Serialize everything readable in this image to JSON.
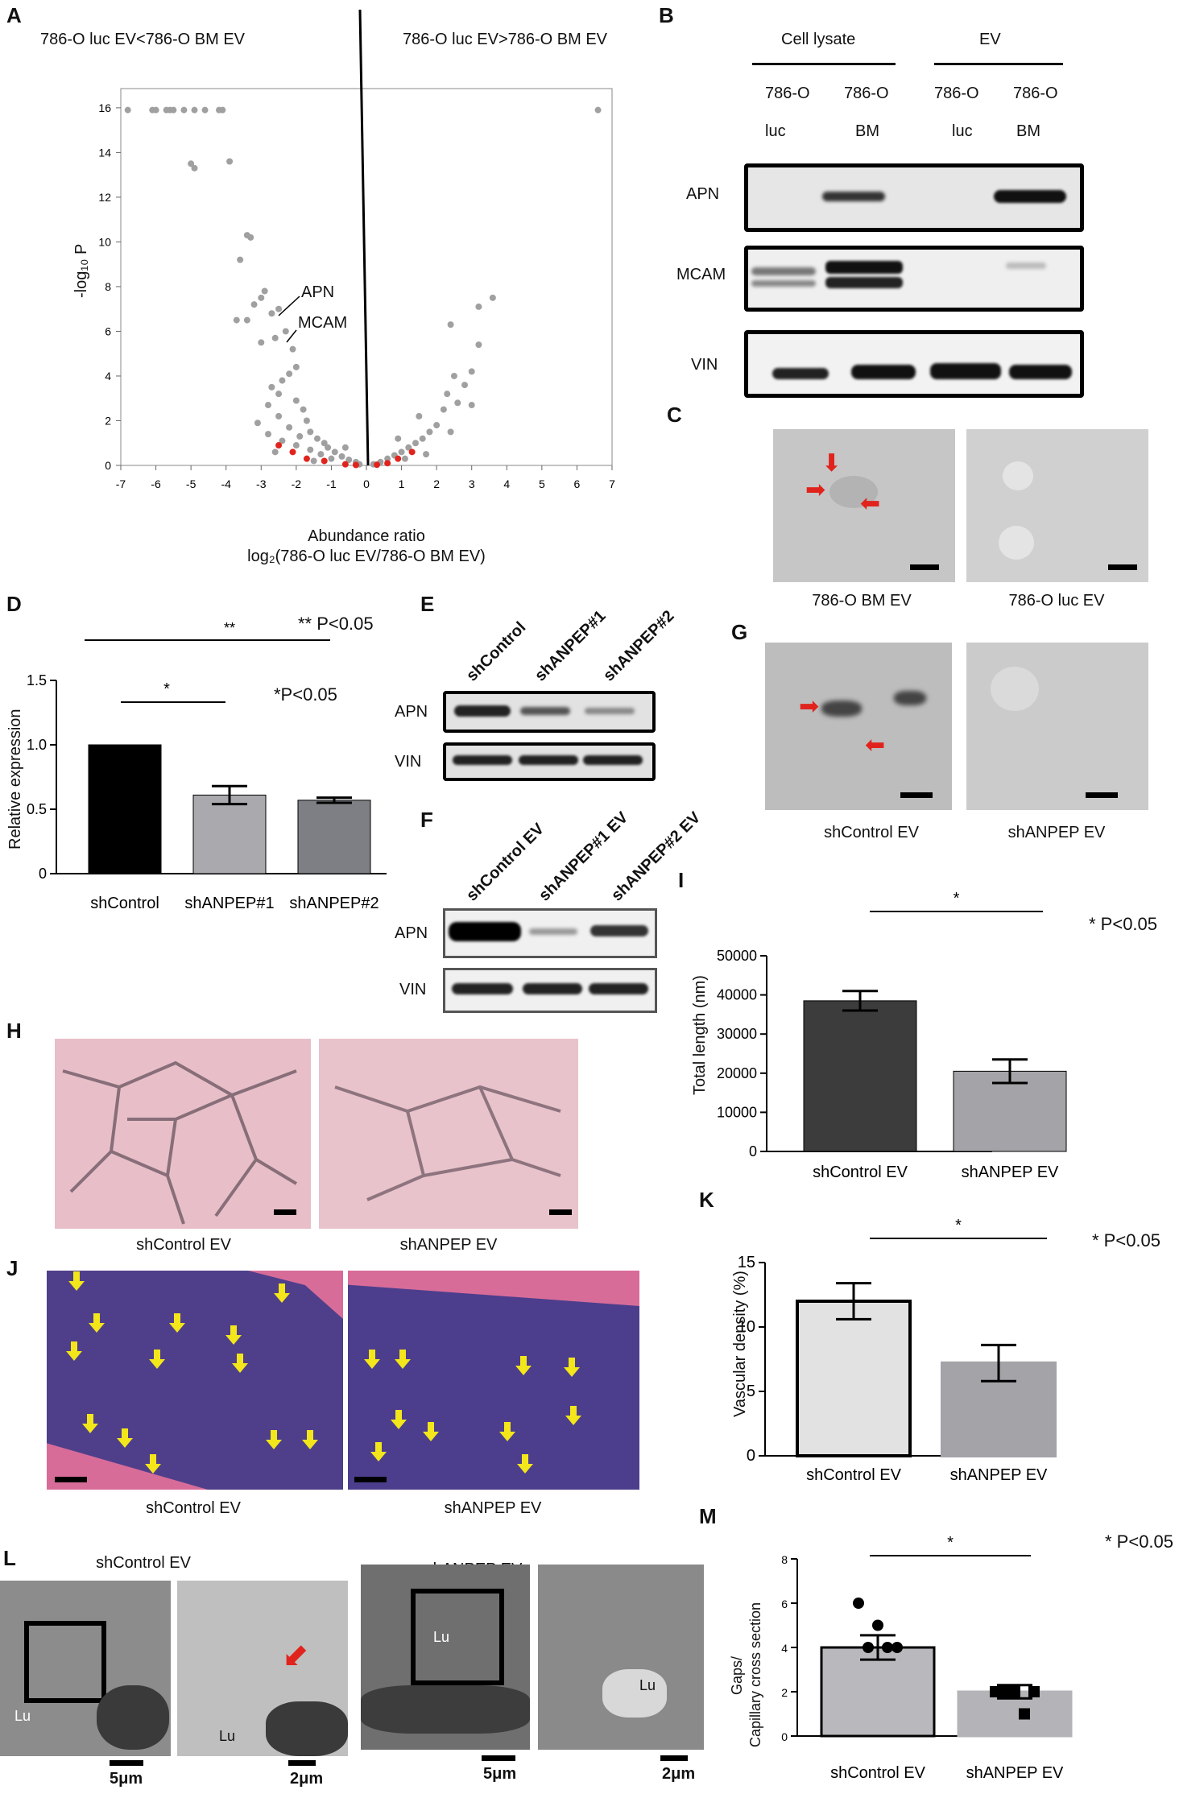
{
  "panel_labels": {
    "A": "A",
    "B": "B",
    "C": "C",
    "D": "D",
    "E": "E",
    "F": "F",
    "G": "G",
    "H": "H",
    "I": "I",
    "J": "J",
    "K": "K",
    "L": "L",
    "M": "M"
  },
  "panelA": {
    "left_header": "786-O luc EV<786-O BM EV",
    "right_header": "786-O luc EV>786-O BM EV",
    "ylabel": "-log₁₀ P",
    "xlabel": "Abundance ratio",
    "xlabel2": "log₂(786-O luc EV/786-O BM EV)",
    "apn_label": "APN",
    "mcam_label": "MCAM",
    "xticks": [
      "-7",
      "-6",
      "-5",
      "-4",
      "-3",
      "-2",
      "-1",
      "0",
      "1",
      "2",
      "3",
      "4",
      "5",
      "6",
      "7"
    ],
    "yticks": [
      "0",
      "2",
      "4",
      "6",
      "8",
      "10",
      "12",
      "14",
      "16"
    ]
  },
  "panelB": {
    "group1": "Cell lysate",
    "group2": "EV",
    "lanes_top": [
      "786-O",
      "786-O",
      "786-O",
      "786-O"
    ],
    "lanes_bottom": [
      "luc",
      "BM",
      "luc",
      "BM"
    ],
    "rows": [
      "APN",
      "MCAM",
      "VIN"
    ]
  },
  "panelC": {
    "cap1": "786-O BM EV",
    "cap2": "786-O luc EV"
  },
  "panelD": {
    "sig1": "**",
    "sig1_note": "** P<0.05",
    "sig2": "*",
    "sig2_note": "*P<0.05",
    "ylabel": "Relative expression",
    "yticks": [
      "0",
      "0.5",
      "1.0",
      "1.5"
    ]
  },
  "panelE": {
    "lanes": [
      "shControl",
      "shANPEP#1",
      "shANPEP#2"
    ],
    "rows": [
      "APN",
      "VIN"
    ]
  },
  "panelF": {
    "lanes": [
      "shControl EV",
      "shANPEP#1 EV",
      "shANPEP#2 EV"
    ],
    "rows": [
      "APN",
      "VIN"
    ]
  },
  "panelG": {
    "cap1": "shControl EV",
    "cap2": "shANPEP EV"
  },
  "panelH": {
    "cap1": "shControl EV",
    "cap2": "shANPEP EV"
  },
  "panelI": {
    "sig": "*",
    "note": "* P<0.05",
    "ylabel": "Total length (nm)",
    "yticks": [
      "0",
      "10000",
      "20000",
      "30000",
      "40000",
      "50000"
    ]
  },
  "panelJ": {
    "cap1": "shControl EV",
    "cap2": "shANPEP EV"
  },
  "panelK": {
    "sig": "*",
    "note": "* P<0.05",
    "ylabel": "Vascular density (%)",
    "yticks": [
      "0",
      "5",
      "10",
      "15"
    ]
  },
  "panelL": {
    "title1": "shControl EV",
    "title2": "shANPEP EV",
    "lu": "Lu",
    "scale1": "5μm",
    "scale2": "2μm",
    "scale3": "5μm",
    "scale4": "2μm"
  },
  "panelM": {
    "sig": "*",
    "note": "* P<0.05",
    "ylabel1": "Gaps/",
    "ylabel2": "Capillary cross section",
    "yticks": [
      "0",
      "2",
      "4",
      "6",
      "8"
    ]
  },
  "chart_data": [
    {
      "type": "scatter",
      "title": "",
      "xlabel": "Abundance ratio log2(786-O luc EV/786-O BM EV)",
      "ylabel": "-log10 P",
      "xlim": [
        -7,
        7
      ],
      "ylim": [
        0,
        16.5
      ],
      "points_gray": [
        [
          -6.8,
          15.9
        ],
        [
          -6.1,
          15.9
        ],
        [
          -6,
          15.9
        ],
        [
          -5.7,
          15.9
        ],
        [
          -5.6,
          15.9
        ],
        [
          -5.5,
          15.9
        ],
        [
          -5.2,
          15.9
        ],
        [
          -4.9,
          15.9
        ],
        [
          -4.6,
          15.9
        ],
        [
          -4.2,
          15.9
        ],
        [
          -4.1,
          15.9
        ],
        [
          6.6,
          15.9
        ],
        [
          -5,
          13.5
        ],
        [
          -4.9,
          13.3
        ],
        [
          -3.9,
          13.6
        ],
        [
          -3.4,
          10.3
        ],
        [
          -3.3,
          10.2
        ],
        [
          -3.6,
          9.2
        ],
        [
          -2.9,
          7.8
        ],
        [
          -3,
          7.5
        ],
        [
          -3.2,
          7.2
        ],
        [
          -2.5,
          7
        ],
        [
          -2.7,
          6.8
        ],
        [
          -3.7,
          6.5
        ],
        [
          -3.4,
          6.5
        ],
        [
          -2.3,
          6
        ],
        [
          -2.6,
          5.7
        ],
        [
          -3,
          5.5
        ],
        [
          -2.1,
          5.2
        ],
        [
          -2,
          4.4
        ],
        [
          -2.2,
          4.1
        ],
        [
          -2.4,
          3.8
        ],
        [
          -2.7,
          3.5
        ],
        [
          -2.5,
          3.2
        ],
        [
          -2,
          2.9
        ],
        [
          -2.8,
          2.7
        ],
        [
          -1.8,
          2.5
        ],
        [
          -2.5,
          2.2
        ],
        [
          -1.7,
          2
        ],
        [
          -3.1,
          1.9
        ],
        [
          -2.2,
          1.7
        ],
        [
          -1.6,
          1.5
        ],
        [
          -2.8,
          1.4
        ],
        [
          -1.9,
          1.3
        ],
        [
          -1.4,
          1.2
        ],
        [
          -2.4,
          1.1
        ],
        [
          -1.2,
          1
        ],
        [
          -2,
          0.9
        ],
        [
          -1.1,
          0.8
        ],
        [
          -1.6,
          0.7
        ],
        [
          -0.9,
          0.6
        ],
        [
          -1.3,
          0.5
        ],
        [
          -0.7,
          0.4
        ],
        [
          -1,
          0.3
        ],
        [
          -0.5,
          0.25
        ],
        [
          -0.3,
          0.15
        ],
        [
          -0.2,
          0.05
        ],
        [
          0.2,
          0.05
        ],
        [
          0.4,
          0.15
        ],
        [
          0.6,
          0.3
        ],
        [
          0.8,
          0.45
        ],
        [
          1,
          0.6
        ],
        [
          1.2,
          0.8
        ],
        [
          1.4,
          1
        ],
        [
          1.6,
          1.2
        ],
        [
          1.8,
          1.5
        ],
        [
          2,
          1.8
        ],
        [
          1.5,
          2.2
        ],
        [
          2.2,
          2.5
        ],
        [
          2.6,
          2.8
        ],
        [
          2.3,
          3.2
        ],
        [
          2.8,
          3.6
        ],
        [
          2.5,
          4
        ],
        [
          3,
          4.2
        ],
        [
          3.2,
          5.4
        ],
        [
          2.4,
          6.3
        ],
        [
          3.2,
          7.1
        ],
        [
          3.6,
          7.5
        ],
        [
          0.9,
          1.2
        ],
        [
          -0.6,
          0.8
        ],
        [
          1.1,
          0.3
        ],
        [
          -1.5,
          0.2
        ],
        [
          2.4,
          1.5
        ],
        [
          -2.6,
          0.6
        ],
        [
          1.7,
          0.5
        ],
        [
          3,
          2.7
        ]
      ],
      "points_red": [
        [
          -2.5,
          0.9
        ],
        [
          -2.1,
          0.6
        ],
        [
          -1.7,
          0.3
        ],
        [
          -1.2,
          0.2
        ],
        [
          -0.6,
          0.05
        ],
        [
          -0.3,
          0.02
        ],
        [
          0.3,
          0.03
        ],
        [
          0.6,
          0.1
        ],
        [
          0.9,
          0.3
        ],
        [
          1.3,
          0.6
        ]
      ],
      "annotations": [
        "APN",
        "MCAM"
      ]
    },
    {
      "type": "bar",
      "title": "",
      "ylabel": "Relative expression",
      "categories": [
        "shControl",
        "shANPEP#1",
        "shANPEP#2"
      ],
      "values": [
        1.0,
        0.61,
        0.57
      ],
      "errors": [
        0,
        0.07,
        0.02
      ],
      "ylim": [
        0,
        1.5
      ]
    },
    {
      "type": "bar",
      "title": "",
      "ylabel": "Total length (nm)",
      "categories": [
        "shControl EV",
        "shANPEP EV"
      ],
      "values": [
        38500,
        20500
      ],
      "errors": [
        2500,
        3000
      ],
      "ylim": [
        0,
        50000
      ]
    },
    {
      "type": "bar",
      "title": "",
      "ylabel": "Vascular density (%)",
      "categories": [
        "shControl EV",
        "shANPEP EV"
      ],
      "values": [
        12,
        7.2
      ],
      "errors": [
        1.4,
        1.4
      ],
      "ylim": [
        0,
        15
      ]
    },
    {
      "type": "bar",
      "title": "",
      "ylabel": "Gaps/ Capillary cross section",
      "categories": [
        "shControl EV",
        "shANPEP EV"
      ],
      "values": [
        4,
        2
      ],
      "errors": [
        0.55,
        0.3
      ],
      "points": [
        [
          6,
          5,
          4,
          4,
          4
        ],
        [
          2,
          2,
          2,
          2,
          1
        ]
      ],
      "ylim": [
        0,
        8
      ]
    }
  ]
}
